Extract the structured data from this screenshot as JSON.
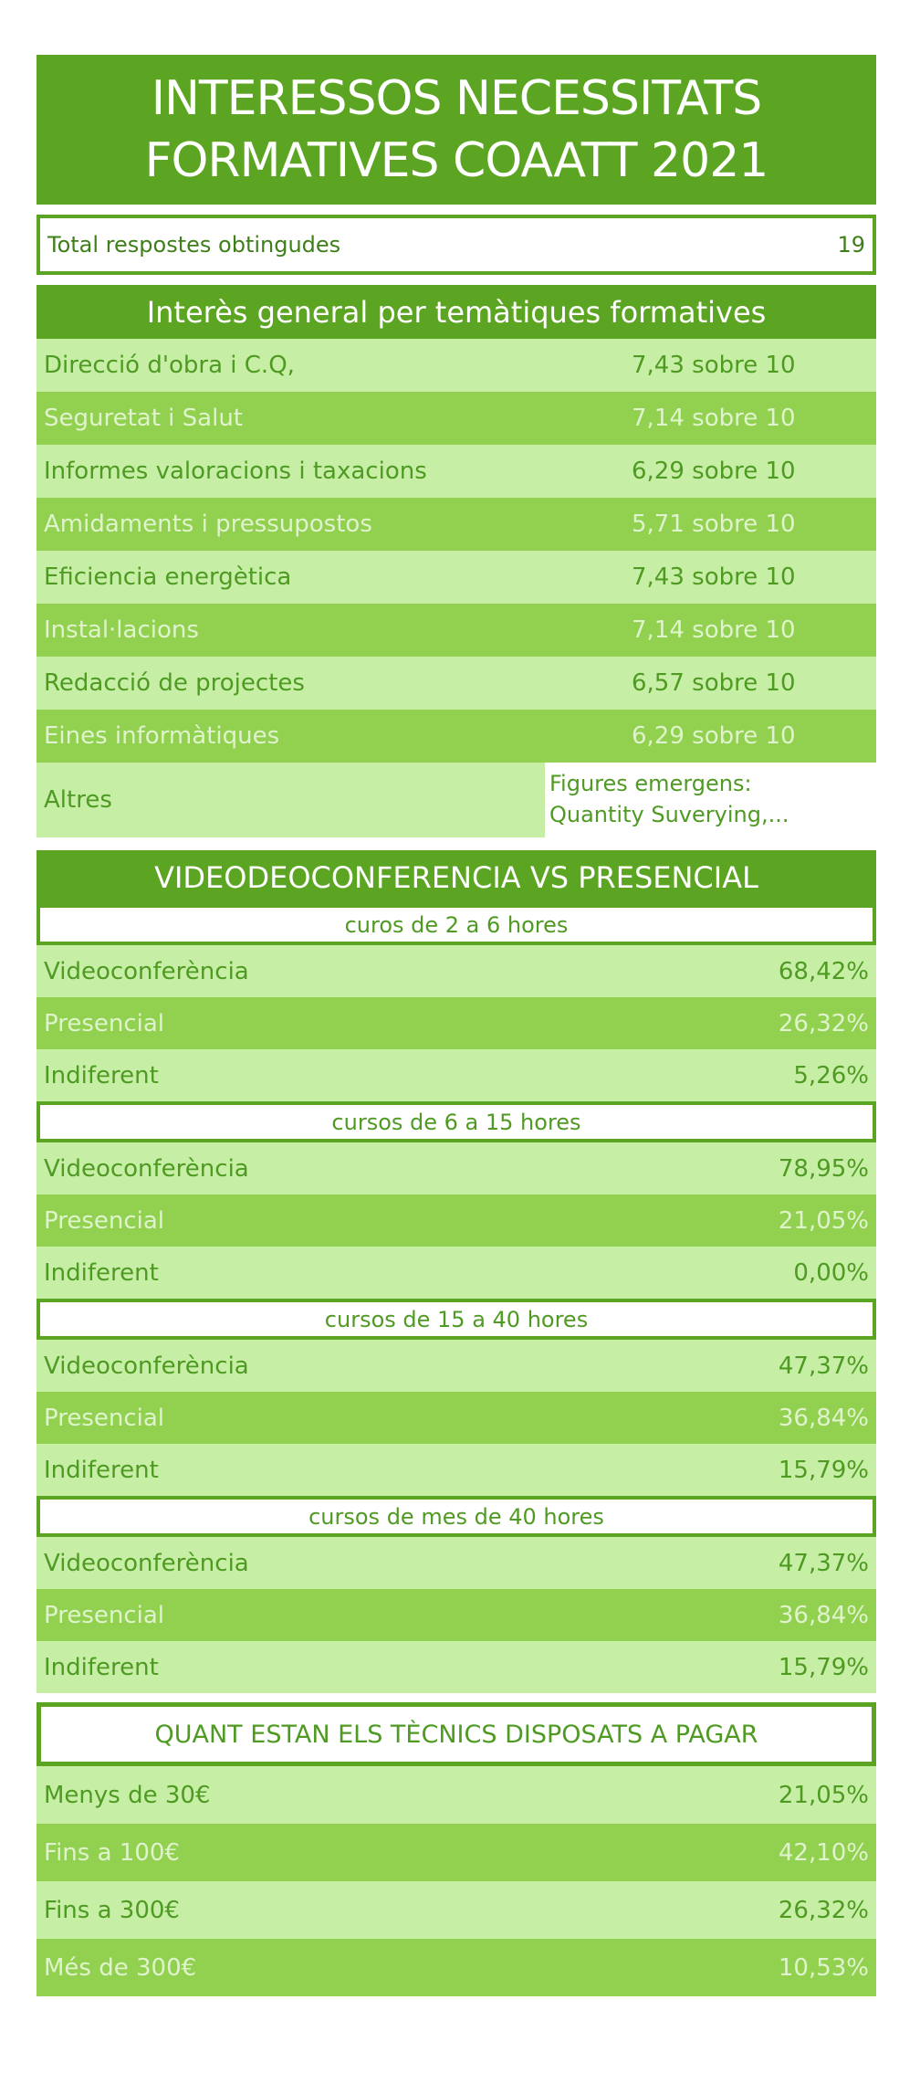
{
  "title": {
    "line1": "INTERESSOS NECESSITATS",
    "line2": "FORMATIVES COAATT 2021"
  },
  "total": {
    "label": "Total respostes obtingudes",
    "value": "19"
  },
  "interest": {
    "heading": "Interès general per temàtiques formatives",
    "items": [
      {
        "label": "Direcció d'obra i C.Q,",
        "value": "7,43 sobre 10"
      },
      {
        "label": "Seguretat i Salut",
        "value": "7,14 sobre 10"
      },
      {
        "label": "Informes valoracions i taxacions",
        "value": "6,29 sobre 10"
      },
      {
        "label": "Amidaments i pressupostos",
        "value": "5,71 sobre 10"
      },
      {
        "label": "Eficiencia energètica",
        "value": "7,43 sobre 10"
      },
      {
        "label": "Instal·lacions",
        "value": "7,14 sobre 10"
      },
      {
        "label": "Redacció de projectes",
        "value": "6,57 sobre 10"
      },
      {
        "label": "Eines informàtiques",
        "value": "6,29 sobre 10"
      }
    ],
    "other": {
      "label": "Altres",
      "note_line1": "Figures emergens:",
      "note_line2": "Quantity Suverying,..."
    }
  },
  "modality": {
    "heading": "VIDEODEOCONFERENCIA VS PRESENCIAL",
    "groups": [
      {
        "title": "curos de 2 a 6 hores",
        "rows": [
          {
            "label": "Videoconferència",
            "value": "68,42%"
          },
          {
            "label": "Presencial",
            "value": "26,32%"
          },
          {
            "label": "Indiferent",
            "value": "5,26%"
          }
        ]
      },
      {
        "title": "cursos de 6 a 15 hores",
        "rows": [
          {
            "label": "Videoconferència",
            "value": "78,95%"
          },
          {
            "label": "Presencial",
            "value": "21,05%"
          },
          {
            "label": "Indiferent",
            "value": "0,00%"
          }
        ]
      },
      {
        "title": "cursos de 15 a 40 hores",
        "rows": [
          {
            "label": "Videoconferència",
            "value": "47,37%"
          },
          {
            "label": "Presencial",
            "value": "36,84%"
          },
          {
            "label": "Indiferent",
            "value": "15,79%"
          }
        ]
      },
      {
        "title": "cursos de mes de 40 hores",
        "rows": [
          {
            "label": "Videoconferència",
            "value": "47,37%"
          },
          {
            "label": "Presencial",
            "value": "36,84%"
          },
          {
            "label": "Indiferent",
            "value": "15,79%"
          }
        ]
      }
    ]
  },
  "payment": {
    "heading": "QUANT ESTAN ELS TÈCNICS DISPOSATS A PAGAR",
    "rows": [
      {
        "label": "Menys de 30€",
        "value": "21,05%"
      },
      {
        "label": "Fins a 100€",
        "value": "42,10%"
      },
      {
        "label": "Fins a 300€",
        "value": "26,32%"
      },
      {
        "label": "Més de 300€",
        "value": "10,53%"
      }
    ]
  },
  "colors": {
    "dark_green": "#5ca522",
    "light_green": "#c6efa5",
    "mid_green": "#92d050"
  }
}
